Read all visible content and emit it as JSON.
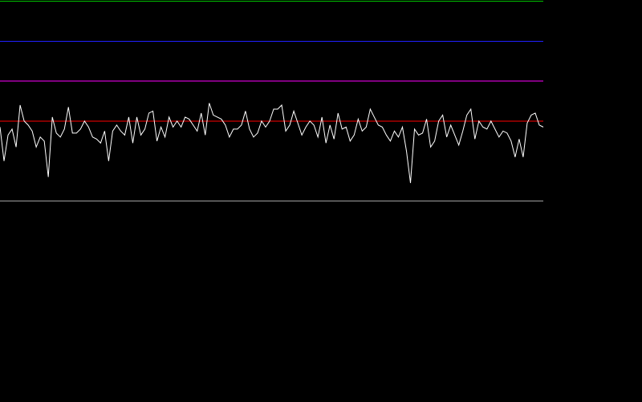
{
  "chart_data": {
    "type": "line",
    "title": "",
    "xlabel": "",
    "ylabel": "",
    "ylim": [
      0,
      1
    ],
    "xlim": [
      0,
      135
    ],
    "grid": false,
    "background_color": "#000000",
    "reference_lines": [
      {
        "value": 1.0,
        "color": "#00c000"
      },
      {
        "value": 0.8,
        "color": "#2020ff"
      },
      {
        "value": 0.6,
        "color": "#ff00ff"
      },
      {
        "value": 0.4,
        "color": "#ff0000"
      },
      {
        "value": 0.0,
        "color": "#a0a0a0"
      }
    ],
    "series": [
      {
        "color": "#ffffff",
        "values": [
          0.37,
          0.2,
          0.33,
          0.36,
          0.27,
          0.48,
          0.4,
          0.38,
          0.35,
          0.27,
          0.32,
          0.3,
          0.12,
          0.42,
          0.34,
          0.32,
          0.36,
          0.47,
          0.34,
          0.34,
          0.36,
          0.4,
          0.37,
          0.32,
          0.31,
          0.29,
          0.35,
          0.2,
          0.35,
          0.38,
          0.35,
          0.33,
          0.42,
          0.29,
          0.42,
          0.33,
          0.36,
          0.44,
          0.45,
          0.3,
          0.37,
          0.32,
          0.42,
          0.37,
          0.4,
          0.37,
          0.42,
          0.41,
          0.38,
          0.35,
          0.44,
          0.33,
          0.49,
          0.43,
          0.42,
          0.41,
          0.38,
          0.32,
          0.36,
          0.36,
          0.38,
          0.45,
          0.36,
          0.32,
          0.34,
          0.4,
          0.37,
          0.4,
          0.46,
          0.46,
          0.48,
          0.35,
          0.38,
          0.45,
          0.39,
          0.33,
          0.37,
          0.4,
          0.38,
          0.32,
          0.42,
          0.29,
          0.38,
          0.31,
          0.44,
          0.36,
          0.37,
          0.3,
          0.33,
          0.41,
          0.35,
          0.37,
          0.46,
          0.42,
          0.38,
          0.37,
          0.33,
          0.3,
          0.35,
          0.32,
          0.37,
          0.25,
          0.09,
          0.36,
          0.33,
          0.34,
          0.41,
          0.27,
          0.3,
          0.4,
          0.43,
          0.32,
          0.38,
          0.33,
          0.28,
          0.35,
          0.43,
          0.46,
          0.31,
          0.4,
          0.37,
          0.36,
          0.4,
          0.36,
          0.32,
          0.35,
          0.34,
          0.3,
          0.22,
          0.31,
          0.22,
          0.39,
          0.43,
          0.44,
          0.38,
          0.37
        ]
      }
    ]
  }
}
